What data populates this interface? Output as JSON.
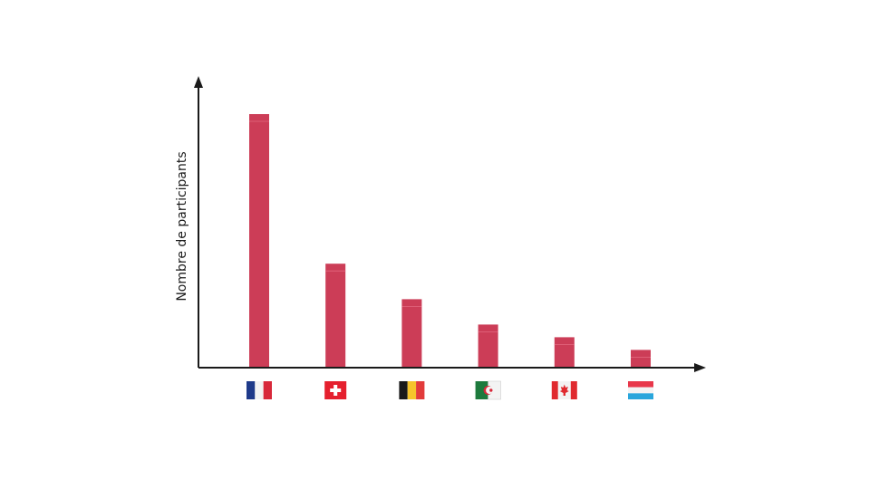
{
  "chart_data": {
    "type": "bar",
    "title": "",
    "xlabel": "",
    "ylabel": "Nombre de participants",
    "categories": [
      "France",
      "Switzerland",
      "Belgium",
      "Algeria",
      "Canada",
      "Luxembourg"
    ],
    "values": [
      100,
      41,
      27,
      17,
      12,
      7
    ],
    "ylim": [
      0,
      115
    ],
    "bar_color": "#cc3d57",
    "axis_color": "#1a1a1a",
    "grid": false
  }
}
